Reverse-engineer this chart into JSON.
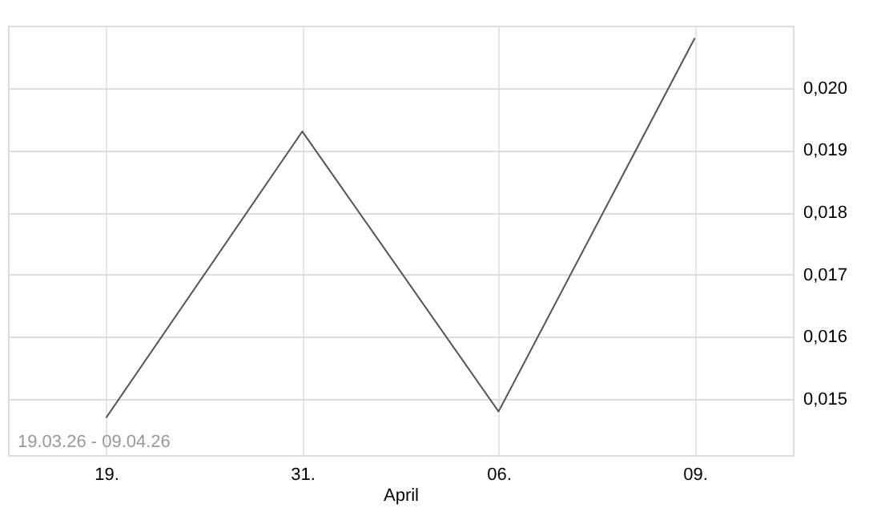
{
  "chart_data": {
    "type": "line",
    "categories": [
      "19.",
      "31.",
      "06.",
      "09."
    ],
    "series": [
      {
        "color": "#555555",
        "values": [
          0.0147,
          0.0193,
          0.0148,
          0.0208
        ]
      }
    ],
    "ylim": [
      0.0141,
      0.021
    ],
    "yticks": [
      {
        "value": 0.015,
        "label": "0,015"
      },
      {
        "value": 0.016,
        "label": "0,016"
      },
      {
        "value": 0.017,
        "label": "0,017"
      },
      {
        "value": 0.018,
        "label": "0,018"
      },
      {
        "value": 0.019,
        "label": "0,019"
      },
      {
        "value": 0.02,
        "label": "0,020"
      }
    ],
    "xlabel": "April",
    "annotations": [
      "19.03.26 - 09.04.26"
    ],
    "grid": true,
    "marker": "none",
    "line_style": "solid"
  }
}
